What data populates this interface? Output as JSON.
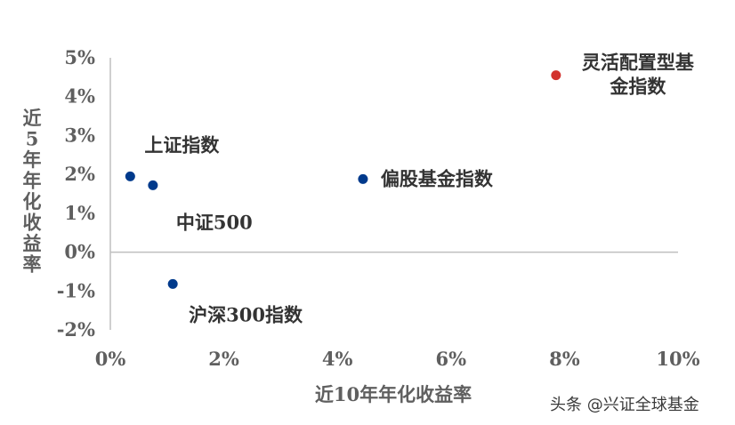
{
  "chart_data": {
    "type": "scatter",
    "title": "",
    "xlabel": "近10年年化收益率",
    "ylabel": "近5年年化收益率",
    "xlim": [
      0,
      10
    ],
    "ylim": [
      -2,
      5
    ],
    "x_ticks": [
      {
        "value": 0,
        "label": "0%"
      },
      {
        "value": 2,
        "label": "2%"
      },
      {
        "value": 4,
        "label": "4%"
      },
      {
        "value": 6,
        "label": "6%"
      },
      {
        "value": 8,
        "label": "8%"
      },
      {
        "value": 10,
        "label": "10%"
      }
    ],
    "y_ticks": [
      {
        "value": 5,
        "label": "5%"
      },
      {
        "value": 4,
        "label": "4%"
      },
      {
        "value": 3,
        "label": "3%"
      },
      {
        "value": 2,
        "label": "2%"
      },
      {
        "value": 1,
        "label": "1%"
      },
      {
        "value": 0,
        "label": "0%"
      },
      {
        "value": -1,
        "label": "-1%"
      },
      {
        "value": -2,
        "label": "-2%"
      }
    ],
    "grid": false,
    "legend": "none",
    "points": [
      {
        "name": "上证指数",
        "x": 0.35,
        "y": 1.95,
        "color": "#003a8c"
      },
      {
        "name": "中证500",
        "x": 0.75,
        "y": 1.72,
        "color": "#003a8c"
      },
      {
        "name": "沪深300指数",
        "x": 1.1,
        "y": -0.82,
        "color": "#003a8c"
      },
      {
        "name": "偏股基金指数",
        "x": 4.45,
        "y": 1.88,
        "color": "#003a8c"
      },
      {
        "name_lines": [
          "灵活配置型基",
          "金指数"
        ],
        "x": 7.85,
        "y": 4.55,
        "color": "#d2322d"
      }
    ]
  },
  "watermark": "头条 @兴证全球基金"
}
